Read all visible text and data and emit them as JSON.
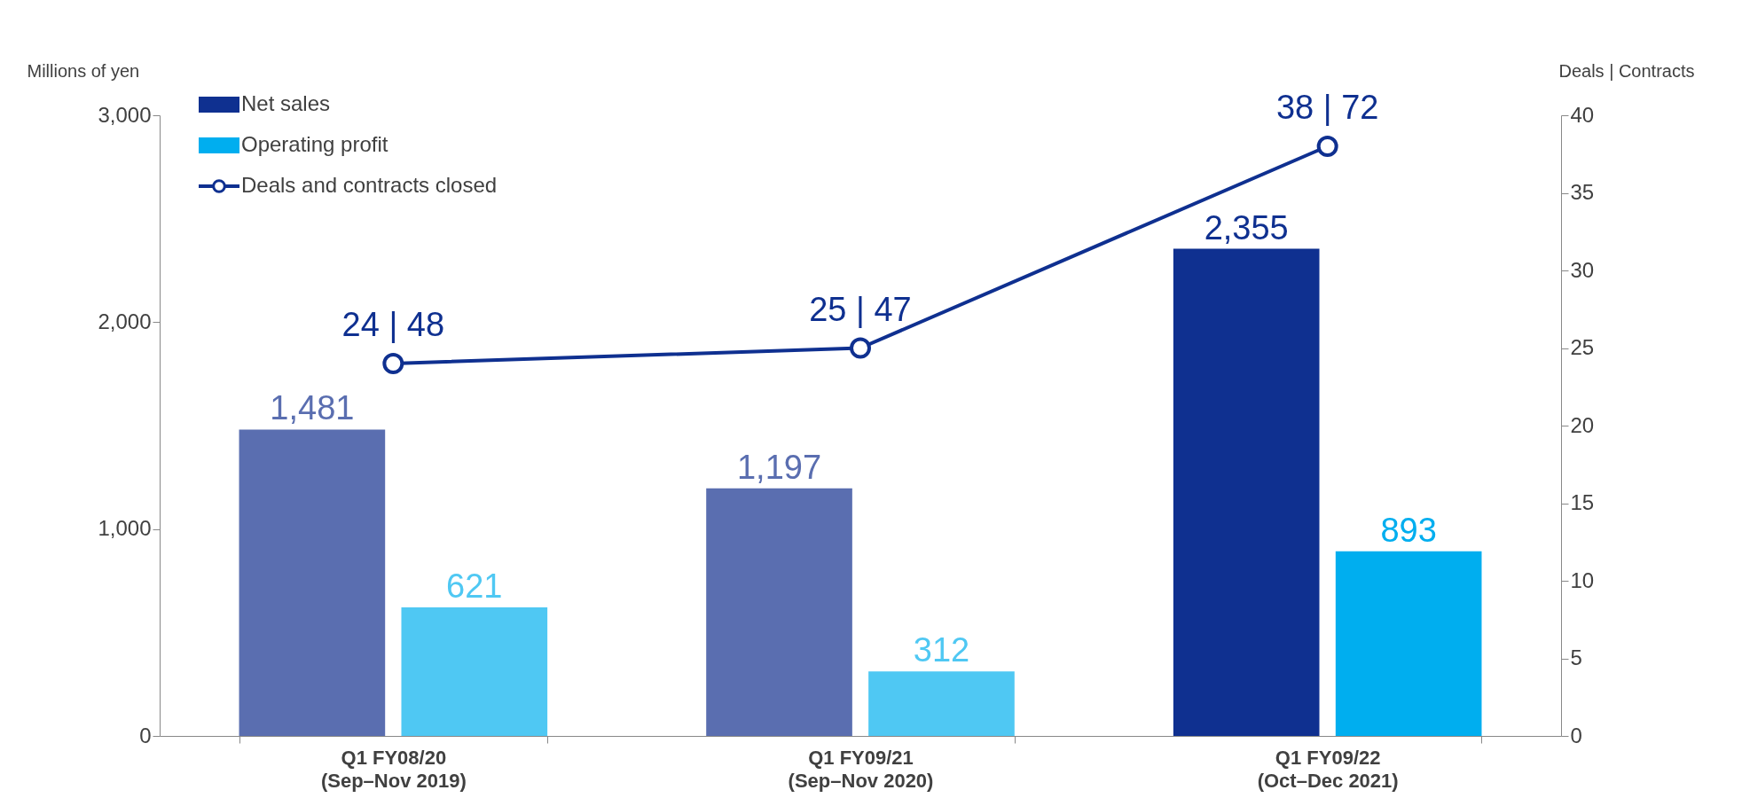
{
  "chart_data": {
    "type": "bar",
    "categories": [
      "Q1 FY08/20\n(Sep–Nov 2019)",
      "Q1 FY09/21\n(Sep–Nov 2020)",
      "Q1 FY09/22\n(Oct–Dec 2021)"
    ],
    "series": [
      {
        "name": "Net sales",
        "color": "#0f3090",
        "colors": [
          "#5a6eb0",
          "#5a6eb0",
          "#0f3090"
        ],
        "values": [
          1481,
          1197,
          2355
        ],
        "value_labels": [
          "1,481",
          "1,197",
          "2,355"
        ]
      },
      {
        "name": "Operating profit",
        "color": "#00aeef",
        "colors": [
          "#4fc8f3",
          "#4fc8f3",
          "#00aeef"
        ],
        "values": [
          621,
          312,
          893
        ],
        "value_labels": [
          "621",
          "312",
          "893"
        ]
      },
      {
        "name": "Deals and contracts closed",
        "type": "line",
        "axis": "y2",
        "color": "#0f3090",
        "marker": "circle",
        "values": [
          24,
          25,
          38
        ],
        "value_labels": [
          "24 | 48",
          "25 | 47",
          "38 | 72"
        ]
      }
    ],
    "ylabel": "Millions of yen",
    "y2label": "Deals | Contracts",
    "ylim": [
      0,
      3000
    ],
    "yticks": [
      0,
      {
        "value": 1000,
        "label": "1,000"
      },
      {
        "value": 2000,
        "label": "2,000"
      },
      {
        "value": 3000,
        "label": "3,000"
      }
    ],
    "y2lim": [
      0,
      40
    ],
    "y2ticks": [
      0,
      5,
      10,
      15,
      20,
      25,
      30,
      35,
      40
    ],
    "legend": "top left",
    "grid": false
  }
}
